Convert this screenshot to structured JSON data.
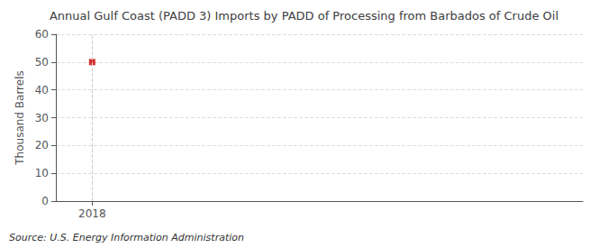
{
  "chart_data": {
    "type": "scatter",
    "title": "Annual Gulf Coast (PADD 3) Imports by PADD of Processing from Barbados of Crude Oil",
    "ylabel": "Thousand Barrels",
    "source": "Source: U.S. Energy Information Administration",
    "x": [
      2018
    ],
    "values": [
      50
    ],
    "color": "#cc0000",
    "marker": "square",
    "xlim": [
      2017.6,
      2023.4
    ],
    "xticks": [
      2018
    ],
    "ylim": [
      0,
      60
    ],
    "yticks": [
      0,
      10,
      20,
      30,
      40,
      50,
      60
    ],
    "grid": true
  }
}
